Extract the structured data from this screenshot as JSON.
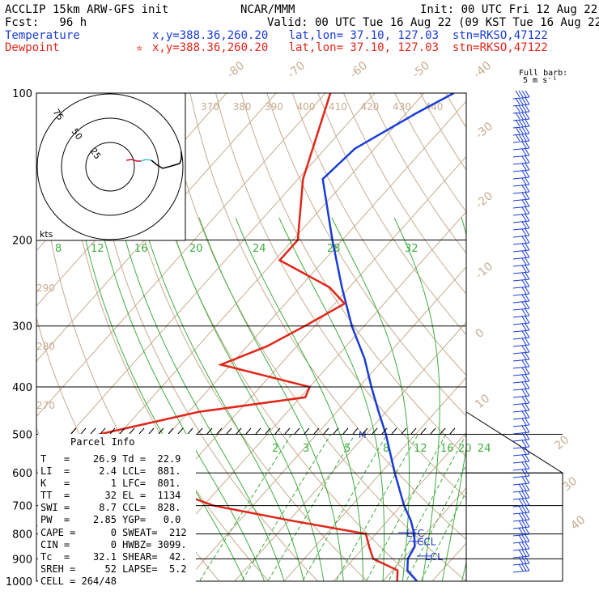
{
  "header": {
    "line1_left": "ACCLIP 15km ARW-GFS init",
    "line1_mid": "NCAR/MMM",
    "line1_right": "Init: 00 UTC Fri 12 Aug 22",
    "line2_left": "Fcst:   96 h",
    "line2_right": "Valid: 00 UTC Tue 16 Aug 22 (09 KST Tue 16 Aug 22)",
    "temp_label": "Temperature",
    "temp_info": "x,y=388.36,260.20   lat,lon= 37.10, 127.03  stn=RKSO,47122",
    "dew_label": "Dewpoint",
    "dew_marker": "✮",
    "dew_info": "x,y=388.36,260.20   lat,lon= 37.10, 127.03  stn=RKSO,47122",
    "barb_label_1": "Full barb:",
    "barb_label_2": "5 m s⁻¹"
  },
  "colors": {
    "temperature": "#1a3cd6",
    "dewpoint": "#e0261a",
    "dry_adiabat": "#c8ab8e",
    "isotherm": "#c8ab8e",
    "moist_adiabat": "#3fae3f",
    "mixing_ratio": "#3fae3f",
    "hodograph_lower": "#d3102a",
    "hodograph_mid": "#33c7e0",
    "hodograph_upper": "#000000",
    "barbs": "#1a3cd6"
  },
  "chart_data": {
    "type": "skew-t log-p",
    "pressure_levels": [
      100,
      200,
      300,
      400,
      500,
      600,
      700,
      800,
      900,
      1000
    ],
    "pressure_labels": [
      "100",
      "200",
      "300",
      "400",
      "500",
      "600",
      "700",
      "800",
      "900",
      "1000"
    ],
    "isotherm_labels": [
      "-80",
      "-70",
      "-60",
      "-50",
      "-40",
      "-30",
      "-20",
      "-10",
      "0",
      "10",
      "20",
      "30",
      "40"
    ],
    "theta_labels_top": [
      "370",
      "380",
      "390",
      "400",
      "410",
      "420",
      "430",
      "440"
    ],
    "theta_labels_side": [
      "290",
      "280",
      "270"
    ],
    "moist_labels_200": [
      "8",
      "12",
      "16",
      "20",
      "24",
      "28",
      "32"
    ],
    "mixing_ratio_labels": [
      "2",
      "3",
      "5",
      "8",
      "12",
      "16",
      "20",
      "24"
    ],
    "temperature_profile_degC": [
      {
        "p": 1000,
        "t": 26.9
      },
      {
        "p": 950,
        "t": 23.0
      },
      {
        "p": 900,
        "t": 21.0
      },
      {
        "p": 850,
        "t": 20.2
      },
      {
        "p": 800,
        "t": 17.8
      },
      {
        "p": 750,
        "t": 14.6
      },
      {
        "p": 700,
        "t": 10.6
      },
      {
        "p": 600,
        "t": 2.8
      },
      {
        "p": 500,
        "t": -6.0
      },
      {
        "p": 450,
        "t": -11.5
      },
      {
        "p": 400,
        "t": -17.5
      },
      {
        "p": 350,
        "t": -24.0
      },
      {
        "p": 300,
        "t": -32.5
      },
      {
        "p": 250,
        "t": -41.5
      },
      {
        "p": 200,
        "t": -52.0
      },
      {
        "p": 150,
        "t": -65.0
      },
      {
        "p": 130,
        "t": -64.0
      },
      {
        "p": 110,
        "t": -58.0
      },
      {
        "p": 100,
        "t": -54.0
      }
    ],
    "dewpoint_profile_degC": [
      {
        "p": 1000,
        "t": 22.9
      },
      {
        "p": 950,
        "t": 21.0
      },
      {
        "p": 900,
        "t": 14.0
      },
      {
        "p": 850,
        "t": 11.0
      },
      {
        "p": 800,
        "t": 8.0
      },
      {
        "p": 750,
        "t": -10.0
      },
      {
        "p": 700,
        "t": -28.0
      },
      {
        "p": 600,
        "t": -52.0
      },
      {
        "p": 520,
        "t": -62.0
      },
      {
        "p": 500,
        "t": -64.0
      },
      {
        "p": 450,
        "t": -48.0
      },
      {
        "p": 420,
        "t": -29.0
      },
      {
        "p": 400,
        "t": -30.0
      },
      {
        "p": 360,
        "t": -52.0
      },
      {
        "p": 330,
        "t": -46.0
      },
      {
        "p": 300,
        "t": -42.0
      },
      {
        "p": 270,
        "t": -38.0
      },
      {
        "p": 250,
        "t": -44.0
      },
      {
        "p": 220,
        "t": -59.0
      },
      {
        "p": 200,
        "t": -59.0
      },
      {
        "p": 150,
        "t": -69.0
      },
      {
        "p": 100,
        "t": -79.0
      }
    ],
    "levels_marked": [
      {
        "label": "LFC",
        "p": 801
      },
      {
        "label": "CCL",
        "p": 828
      },
      {
        "label": "LCL",
        "p": 881
      }
    ],
    "melting_marker": {
      "label": "M",
      "p": 500
    },
    "hodograph": {
      "rings": [
        "75",
        "50",
        "25"
      ],
      "unit": "kts"
    },
    "parcel_info": {
      "title": "Parcel Info",
      "rows": [
        "T   =    26.9 Td =  22.9",
        "LI  =     2.4 LCL=  881.",
        "K   =       1 LFC=  801.",
        "TT  =      32 EL =  1134",
        "SWI =     8.7 CCL=  828.",
        "PW  =    2.85 YGP=   0.0",
        "CAPE =      0 SWEAT=  212",
        "CIN =       0 HWBZ= 3099.",
        "Tc  =    32.1 SHEAR=  42.",
        "SREH =     52 LAPSE=  5.2",
        "CELL = 264/48"
      ]
    }
  }
}
